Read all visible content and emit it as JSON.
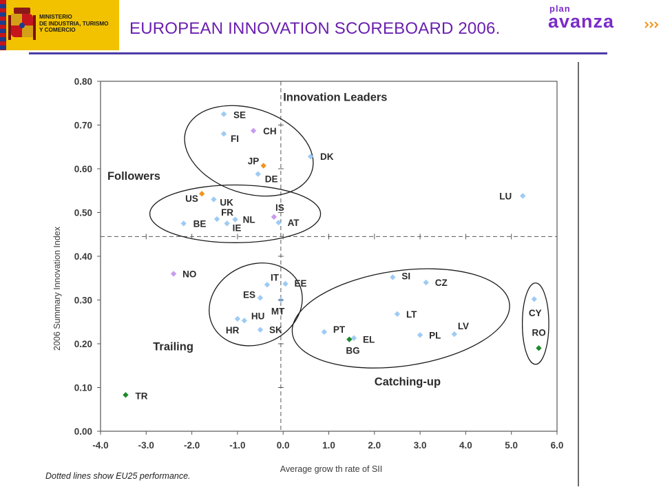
{
  "header": {
    "ministry_text": "MINISTERIO\nDE INDUSTRIA, TURISMO\nY COMERCIO",
    "title": "EUROPEAN INNOVATION SCOREBOARD 2006.",
    "plan_word": "PLAN",
    "avanza_word": "avanza",
    "title_color": "#6a1fb0",
    "logo_color": "#7a2cc8",
    "rule_color": "#4a3aa6"
  },
  "chart_data": {
    "type": "scatter",
    "xlabel": "Average grow th rate of SII",
    "ylabel": "2006 Summary Innovation Index",
    "xlim": [
      -4.0,
      6.0
    ],
    "ylim": [
      0.0,
      0.8
    ],
    "x_ticks": [
      "-4.0",
      "-3.0",
      "-2.0",
      "-1.0",
      "0.0",
      "1.0",
      "2.0",
      "3.0",
      "4.0",
      "5.0",
      "6.0"
    ],
    "y_ticks": [
      "0.00",
      "0.10",
      "0.20",
      "0.30",
      "0.40",
      "0.50",
      "0.60",
      "0.70",
      "0.80"
    ],
    "reference_lines": {
      "x": -0.05,
      "y": 0.445,
      "style": "dashed"
    },
    "note": "Dotted lines show EU25 performance.",
    "groups": [
      {
        "name": "Innovation Leaders",
        "label_x": 0.0,
        "label_y": 0.755,
        "ellipse": {
          "cx": -0.75,
          "cy": 0.641,
          "rx": 1.45,
          "ry": 0.097,
          "angle": 18
        }
      },
      {
        "name": "Followers",
        "label_x": -3.85,
        "label_y": 0.575,
        "ellipse": {
          "cx": -1.05,
          "cy": 0.497,
          "rx": 1.87,
          "ry": 0.066,
          "angle": 0
        }
      },
      {
        "name": "Trailing",
        "label_x": -2.85,
        "label_y": 0.185,
        "ellipse": {
          "cx": -0.6,
          "cy": 0.29,
          "rx": 1.05,
          "ry": 0.091,
          "angle": -25
        }
      },
      {
        "name": "Catching-up",
        "label_x": 2.0,
        "label_y": 0.105,
        "ellipse": {
          "cx": 2.58,
          "cy": 0.258,
          "rx": 2.4,
          "ry": 0.109,
          "angle": -8
        }
      },
      {
        "name": "",
        "label_x": 0,
        "label_y": 0,
        "ellipse": {
          "cx": 5.53,
          "cy": 0.246,
          "rx": 0.29,
          "ry": 0.093,
          "angle": 0
        }
      }
    ],
    "points": [
      {
        "label": "SE",
        "x": -1.3,
        "y": 0.725,
        "color": "#9ecbf4",
        "dx": 14,
        "dy": 6
      },
      {
        "label": "CH",
        "x": -0.65,
        "y": 0.687,
        "color": "#c79cf0",
        "dx": 14,
        "dy": 5
      },
      {
        "label": "FI",
        "x": -1.3,
        "y": 0.68,
        "color": "#9ecbf4",
        "dx": 10,
        "dy": 12
      },
      {
        "label": "DK",
        "x": 0.6,
        "y": 0.628,
        "color": "#9ecbf4",
        "dx": 14,
        "dy": 5
      },
      {
        "label": "JP",
        "x": -0.43,
        "y": 0.607,
        "color": "#f2941e",
        "dx": -23,
        "dy": -2
      },
      {
        "label": "DE",
        "x": -0.55,
        "y": 0.588,
        "color": "#9ecbf4",
        "dx": 10,
        "dy": 12
      },
      {
        "label": "LU",
        "x": 5.25,
        "y": 0.538,
        "color": "#9ecbf4",
        "dx": -34,
        "dy": 5
      },
      {
        "label": "US",
        "x": -1.78,
        "y": 0.543,
        "color": "#f2941e",
        "dx": -24,
        "dy": 12
      },
      {
        "label": "UK",
        "x": -1.52,
        "y": 0.53,
        "color": "#9ecbf4",
        "dx": 9,
        "dy": 9
      },
      {
        "label": "FR",
        "x": -1.45,
        "y": 0.485,
        "color": "#9ecbf4",
        "dx": 6,
        "dy": -5
      },
      {
        "label": "NL",
        "x": -1.05,
        "y": 0.484,
        "color": "#9ecbf4",
        "dx": 11,
        "dy": 5
      },
      {
        "label": "IS",
        "x": -0.2,
        "y": 0.49,
        "color": "#c79cf0",
        "dx": 2,
        "dy": -9
      },
      {
        "label": "BE",
        "x": -2.18,
        "y": 0.475,
        "color": "#9ecbf4",
        "dx": 14,
        "dy": 5
      },
      {
        "label": "IE",
        "x": -1.23,
        "y": 0.475,
        "color": "#9ecbf4",
        "dx": 8,
        "dy": 11
      },
      {
        "label": "AT",
        "x": -0.1,
        "y": 0.477,
        "color": "#9ecbf4",
        "dx": 13,
        "dy": 5
      },
      {
        "label": "NO",
        "x": -2.4,
        "y": 0.36,
        "color": "#c79cf0",
        "dx": 13,
        "dy": 5
      },
      {
        "label": "IT",
        "x": -0.35,
        "y": 0.335,
        "color": "#9ecbf4",
        "dx": 5,
        "dy": -6
      },
      {
        "label": "EE",
        "x": 0.05,
        "y": 0.337,
        "color": "#9ecbf4",
        "dx": 13,
        "dy": 4
      },
      {
        "label": "ES",
        "x": -0.5,
        "y": 0.305,
        "color": "#9ecbf4",
        "dx": -25,
        "dy": 0
      },
      {
        "label": "MT",
        "x": -0.05,
        "y": 0.3,
        "color": "#9ecbf4",
        "dx": -14,
        "dy": 21
      },
      {
        "label": "HU",
        "x": -0.85,
        "y": 0.253,
        "color": "#9ecbf4",
        "dx": 10,
        "dy": -2
      },
      {
        "label": "HR",
        "x": -1.0,
        "y": 0.257,
        "color": "#9ecbf4",
        "dx": -17,
        "dy": 21
      },
      {
        "label": "SK",
        "x": -0.5,
        "y": 0.232,
        "color": "#9ecbf4",
        "dx": 13,
        "dy": 5
      },
      {
        "label": "SI",
        "x": 2.4,
        "y": 0.352,
        "color": "#9ecbf4",
        "dx": 13,
        "dy": 3
      },
      {
        "label": "CZ",
        "x": 3.13,
        "y": 0.34,
        "color": "#9ecbf4",
        "dx": 13,
        "dy": 5
      },
      {
        "label": "LT",
        "x": 2.5,
        "y": 0.268,
        "color": "#9ecbf4",
        "dx": 13,
        "dy": 5
      },
      {
        "label": "LV",
        "x": 3.75,
        "y": 0.222,
        "color": "#9ecbf4",
        "dx": 5,
        "dy": -7
      },
      {
        "label": "PT",
        "x": 0.9,
        "y": 0.227,
        "color": "#9ecbf4",
        "dx": 13,
        "dy": 1
      },
      {
        "label": "PL",
        "x": 3.0,
        "y": 0.22,
        "color": "#9ecbf4",
        "dx": 13,
        "dy": 5
      },
      {
        "label": "EL",
        "x": 1.55,
        "y": 0.213,
        "color": "#9ecbf4",
        "dx": 13,
        "dy": 7
      },
      {
        "label": "BG",
        "x": 1.45,
        "y": 0.21,
        "color": "#1e8a2e",
        "dx": -5,
        "dy": 21
      },
      {
        "label": "CY",
        "x": 5.5,
        "y": 0.302,
        "color": "#9ecbf4",
        "dx": -8,
        "dy": 25
      },
      {
        "label": "RO",
        "x": 5.6,
        "y": 0.19,
        "color": "#1e8a2e",
        "dx": -10,
        "dy": -18
      },
      {
        "label": "TR",
        "x": -3.45,
        "y": 0.083,
        "color": "#1e8a2e",
        "dx": 14,
        "dy": 6
      }
    ]
  }
}
